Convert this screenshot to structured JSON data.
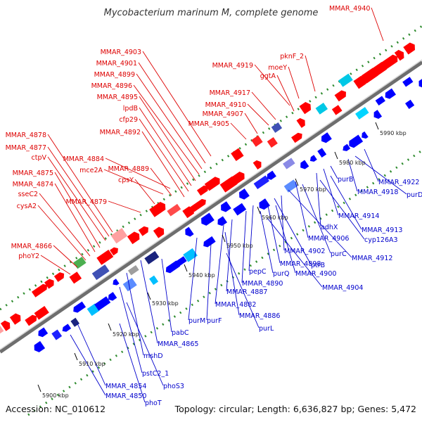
{
  "title": "Mycobacterium marinum M, complete genome",
  "footer": {
    "accession": "Accession: NC_010612",
    "summary": "Topology: circular; Length: 6,636,827 bp; Genes: 5,472"
  },
  "colors": {
    "forward_label": "#dd0000",
    "reverse_label": "#0000cc",
    "backbone": "#808080",
    "dots": "#2e8b2e",
    "forward_gene": "#ff0000",
    "reverse_gene": "#0000ff"
  },
  "kbp_markers": [
    "5900 kbp",
    "5910 kbp",
    "5920 kbp",
    "5930 kbp",
    "5940 kbp",
    "5950 kbp",
    "5960 kbp",
    "5970 kbp",
    "5980 kbp",
    "5990 kbp"
  ],
  "forward_labels": [
    "MMAR_4940",
    "MMAR_4903",
    "MMAR_4901",
    "MMAR_4899",
    "MMAR_4896",
    "MMAR_4895",
    "lpdB",
    "cfp29",
    "MMAR_4892",
    "MMAR_4919",
    "moeY",
    "pknF_2",
    "ggtA",
    "MMAR_4917",
    "MMAR_4910",
    "MMAR_4907",
    "MMAR_4905",
    "MMAR_4878",
    "MMAR_4877",
    "ctpV",
    "MMAR_4884",
    "mce2A",
    "MMAR_4889",
    "cpsY",
    "MMAR_4875",
    "MMAR_4874",
    "sseC2",
    "cysA2",
    "MMAR_4879",
    "MMAR_4866",
    "phoY2"
  ],
  "reverse_labels": [
    "MMAR_4922",
    "purD",
    "MMAR_4918",
    "purB",
    "MMAR_4914",
    "adhX",
    "MMAR_4913",
    "cyp126A3",
    "MMAR_4906",
    "purC",
    "MMAR_4912",
    "MMAR_4902",
    "ptrB",
    "MMAR_4898",
    "MMAR_4900",
    "pepC",
    "purQ",
    "MMAR_4890",
    "MMAR_4904",
    "MMAR_4887",
    "MMAR_4882",
    "MMAR_4886",
    "purM",
    "purF",
    "purL",
    "pabC",
    "MMAR_4865",
    "mshD",
    "pstC2_1",
    "phoS3",
    "MMAR_4854",
    "MMAR_4850",
    "phoT"
  ]
}
